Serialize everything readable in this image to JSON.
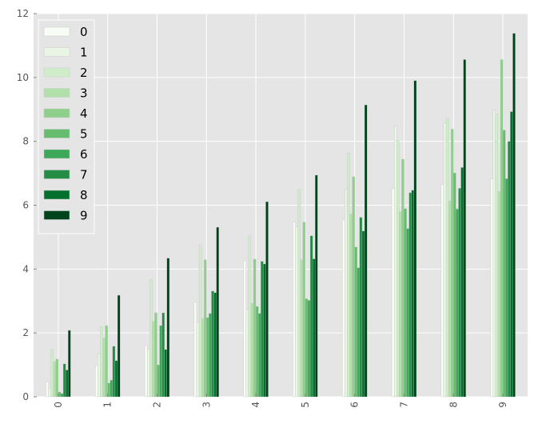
{
  "chart_data": {
    "type": "bar",
    "title": "",
    "xlabel": "",
    "ylabel": "",
    "categories": [
      "0",
      "1",
      "2",
      "3",
      "4",
      "5",
      "6",
      "7",
      "8",
      "9"
    ],
    "ylim": [
      0,
      12
    ],
    "yticks": [
      "0",
      "2",
      "4",
      "6",
      "8",
      "10",
      "12"
    ],
    "grid": true,
    "legend_placement": "top-left",
    "colormap": "Greens",
    "series": [
      {
        "name": "0",
        "color": "#f7fcf5",
        "values": [
          0.47,
          0.97,
          1.6,
          2.96,
          4.26,
          5.47,
          5.54,
          6.52,
          6.64,
          6.82
        ]
      },
      {
        "name": "1",
        "color": "#e8f6e3",
        "values": [
          0.27,
          1.35,
          1.48,
          2.33,
          2.73,
          5.32,
          6.49,
          8.48,
          8.58,
          8.99
        ]
      },
      {
        "name": "2",
        "color": "#d0edca",
        "values": [
          1.48,
          2.2,
          3.68,
          4.76,
          5.04,
          6.49,
          7.63,
          8.02,
          8.72,
          8.86
        ]
      },
      {
        "name": "3",
        "color": "#b2e0ab",
        "values": [
          1.1,
          1.83,
          2.36,
          2.46,
          2.93,
          4.29,
          5.72,
          5.79,
          6.13,
          6.43
        ]
      },
      {
        "name": "4",
        "color": "#8ed08b",
        "values": [
          1.18,
          2.23,
          2.63,
          4.29,
          4.31,
          5.47,
          6.89,
          7.44,
          8.38,
          10.56
        ]
      },
      {
        "name": "5",
        "color": "#66bd6f",
        "values": [
          0.15,
          0.43,
          1.0,
          2.48,
          2.83,
          3.07,
          4.69,
          5.89,
          7.01,
          8.35
        ]
      },
      {
        "name": "6",
        "color": "#3da75a",
        "values": [
          0.1,
          0.52,
          2.23,
          2.61,
          2.61,
          3.02,
          4.04,
          5.27,
          5.88,
          6.83
        ]
      },
      {
        "name": "7",
        "color": "#238c45",
        "values": [
          1.03,
          1.58,
          2.63,
          3.31,
          4.24,
          5.04,
          5.62,
          6.39,
          6.53,
          8.0
        ]
      },
      {
        "name": "8",
        "color": "#03702e",
        "values": [
          0.84,
          1.13,
          1.48,
          3.26,
          4.16,
          4.32,
          5.19,
          6.47,
          7.18,
          8.93
        ]
      },
      {
        "name": "9",
        "color": "#00441b",
        "values": [
          2.08,
          3.18,
          4.34,
          5.31,
          6.11,
          6.94,
          9.14,
          9.9,
          10.56,
          11.38
        ]
      }
    ],
    "colors": {
      "background": "#e5e5e5",
      "grid": "#ffffff",
      "tick_label": "#555555"
    }
  }
}
